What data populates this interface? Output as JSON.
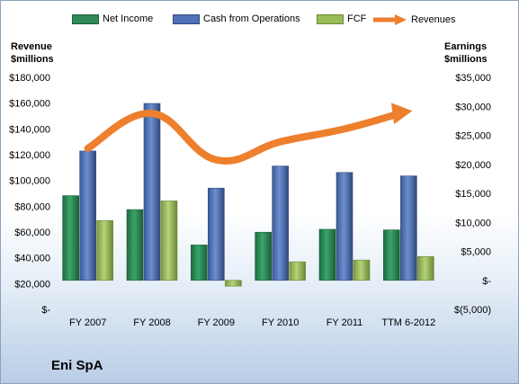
{
  "company": "Eni SpA",
  "left_axis_title": [
    "Revenue",
    "$millions"
  ],
  "right_axis_title": [
    "Earnings",
    "$millions"
  ],
  "colors": {
    "net_income": "#2e8b57",
    "cash_ops": "#4f72b8",
    "fcf": "#9bbb59",
    "revenues": "#ee7f2d"
  },
  "chart_data": {
    "type": "bar",
    "categories": [
      "FY 2007",
      "FY 2008",
      "FY 2009",
      "FY 2010",
      "FY 2011",
      "TTM 6-2012"
    ],
    "series": [
      {
        "name": "Net Income",
        "axis": "right",
        "values": [
          14600,
          12200,
          6100,
          8300,
          8800,
          8700
        ]
      },
      {
        "name": "Cash from Operations",
        "axis": "right",
        "values": [
          22300,
          30500,
          15900,
          19700,
          18600,
          18000
        ]
      },
      {
        "name": "FCF",
        "axis": "right",
        "values": [
          10300,
          13700,
          -1000,
          3200,
          3500,
          4100
        ]
      },
      {
        "name": "Revenues",
        "type": "line",
        "axis": "left",
        "values": [
          125000,
          152000,
          116000,
          130000,
          140000,
          154000
        ]
      }
    ],
    "left_axis": {
      "min": 0,
      "max": 180000,
      "step": 20000,
      "tick_labels": [
        "$-",
        "$20,000",
        "$40,000",
        "$60,000",
        "$80,000",
        "$100,000",
        "$120,000",
        "$140,000",
        "$160,000",
        "$180,000"
      ]
    },
    "right_axis": {
      "min": -5000,
      "max": 35000,
      "step": 5000,
      "tick_labels": [
        "$(5,000)",
        "$-",
        "$5,000",
        "$10,000",
        "$15,000",
        "$20,000",
        "$25,000",
        "$30,000",
        "$35,000"
      ]
    },
    "legend_position": "top",
    "grid": false
  }
}
